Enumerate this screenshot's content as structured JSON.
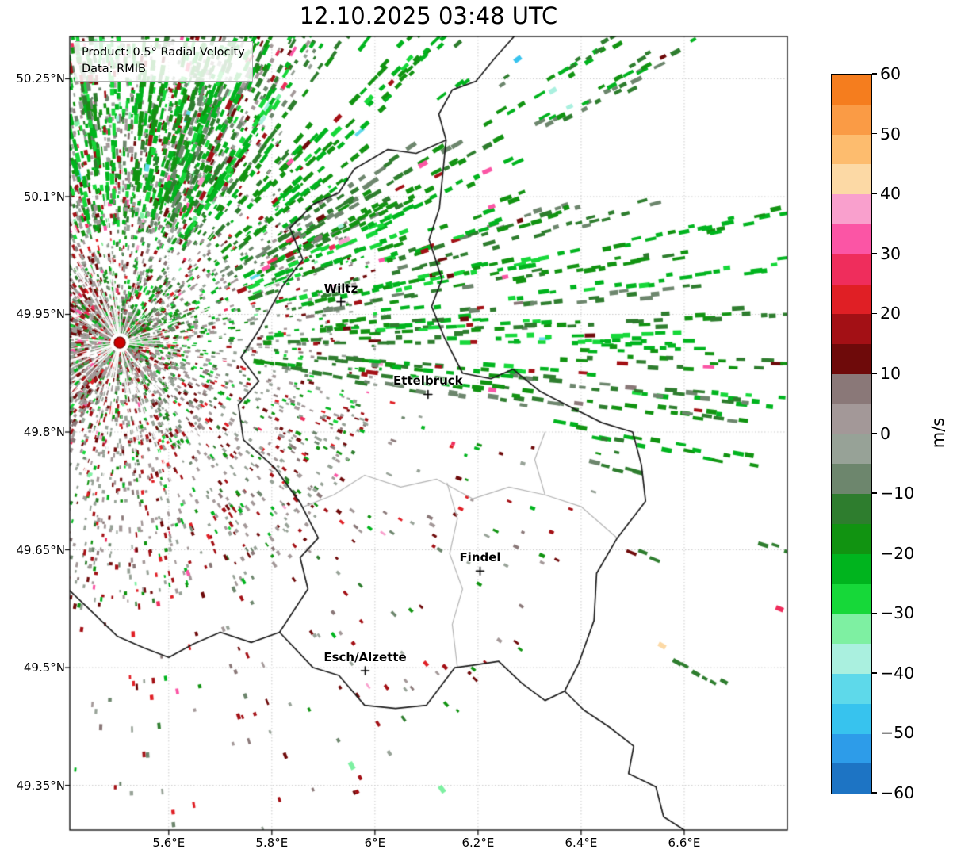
{
  "title": "12.10.2025 03:48 UTC",
  "info_box": {
    "product": "Product: 0.5° Radial Velocity",
    "source": "Data: RMIB"
  },
  "map": {
    "extent": {
      "lon_min": 5.408,
      "lon_max": 6.8,
      "lat_min": 49.293,
      "lat_max": 50.304
    },
    "grid_color": "#c9c9c9",
    "lon_ticks": [
      {
        "value": 5.6,
        "label": "5.6°E"
      },
      {
        "value": 5.8,
        "label": "5.8°E"
      },
      {
        "value": 6.0,
        "label": "6°E"
      },
      {
        "value": 6.2,
        "label": "6.2°E"
      },
      {
        "value": 6.4,
        "label": "6.4°E"
      },
      {
        "value": 6.6,
        "label": "6.6°E"
      }
    ],
    "lat_ticks": [
      {
        "value": 50.25,
        "label": "50.25°N"
      },
      {
        "value": 50.1,
        "label": "50.1°N"
      },
      {
        "value": 49.95,
        "label": "49.95°N"
      },
      {
        "value": 49.8,
        "label": "49.8°N"
      },
      {
        "value": 49.65,
        "label": "49.65°N"
      },
      {
        "value": 49.5,
        "label": "49.5°N"
      },
      {
        "value": 49.35,
        "label": "49.35°N"
      }
    ],
    "cities": [
      {
        "name": "Wiltz",
        "lon": 5.934,
        "lat": 49.966
      },
      {
        "name": "Ettelbruck",
        "lon": 6.103,
        "lat": 49.848
      },
      {
        "name": "Findel",
        "lon": 6.204,
        "lat": 49.623
      },
      {
        "name": "Esch/Alzette",
        "lon": 5.981,
        "lat": 49.496
      }
    ],
    "radar_site": {
      "lon": 5.505,
      "lat": 49.914,
      "color": "#cc0000",
      "edge": "#7a0000"
    },
    "borders": {
      "country_color": "#1a1a1a",
      "region_color": "#b3b3b3",
      "country_paths": [
        [
          [
            6.27,
            50.304
          ],
          [
            6.232,
            50.276
          ],
          [
            6.196,
            50.247
          ],
          [
            6.15,
            50.236
          ],
          [
            6.124,
            50.205
          ],
          [
            6.138,
            50.172
          ],
          [
            6.125,
            50.085
          ],
          [
            6.105,
            50.045
          ],
          [
            6.13,
            49.995
          ],
          [
            6.11,
            49.96
          ],
          [
            6.135,
            49.92
          ],
          [
            6.17,
            49.875
          ],
          [
            6.225,
            49.868
          ],
          [
            6.268,
            49.88
          ],
          [
            6.32,
            49.852
          ],
          [
            6.385,
            49.83
          ],
          [
            6.44,
            49.812
          ],
          [
            6.5,
            49.8
          ],
          [
            6.517,
            49.758
          ],
          [
            6.525,
            49.712
          ],
          [
            6.47,
            49.665
          ],
          [
            6.43,
            49.62
          ],
          [
            6.425,
            49.56
          ],
          [
            6.395,
            49.505
          ],
          [
            6.368,
            49.47
          ],
          [
            6.405,
            49.446
          ],
          [
            6.455,
            49.424
          ],
          [
            6.502,
            49.4
          ],
          [
            6.492,
            49.365
          ],
          [
            6.545,
            49.348
          ],
          [
            6.56,
            49.31
          ],
          [
            6.6,
            49.293
          ]
        ],
        [
          [
            6.138,
            50.172
          ],
          [
            6.08,
            50.155
          ],
          [
            6.025,
            50.16
          ],
          [
            5.96,
            50.135
          ],
          [
            5.93,
            50.105
          ],
          [
            5.88,
            50.09
          ],
          [
            5.835,
            50.06
          ],
          [
            5.86,
            50.02
          ],
          [
            5.82,
            49.985
          ],
          [
            5.775,
            49.93
          ],
          [
            5.74,
            49.895
          ],
          [
            5.775,
            49.865
          ],
          [
            5.735,
            49.835
          ],
          [
            5.745,
            49.79
          ],
          [
            5.805,
            49.755
          ],
          [
            5.855,
            49.71
          ],
          [
            5.89,
            49.665
          ],
          [
            5.855,
            49.64
          ],
          [
            5.87,
            49.6
          ],
          [
            5.845,
            49.575
          ],
          [
            5.815,
            49.545
          ]
        ],
        [
          [
            5.408,
            49.598
          ],
          [
            5.445,
            49.575
          ],
          [
            5.5,
            49.54
          ],
          [
            5.552,
            49.525
          ],
          [
            5.6,
            49.513
          ],
          [
            5.648,
            49.53
          ],
          [
            5.7,
            49.545
          ],
          [
            5.76,
            49.532
          ],
          [
            5.815,
            49.545
          ],
          [
            5.88,
            49.5
          ],
          [
            5.93,
            49.49
          ],
          [
            5.98,
            49.452
          ],
          [
            6.04,
            49.448
          ],
          [
            6.1,
            49.452
          ],
          [
            6.155,
            49.5
          ],
          [
            6.19,
            49.503
          ],
          [
            6.24,
            49.508
          ],
          [
            6.285,
            49.48
          ],
          [
            6.33,
            49.458
          ],
          [
            6.368,
            49.47
          ]
        ]
      ],
      "region_paths": [
        [
          [
            5.862,
            49.705
          ],
          [
            5.92,
            49.72
          ],
          [
            5.98,
            49.745
          ],
          [
            6.05,
            49.73
          ],
          [
            6.12,
            49.74
          ],
          [
            6.19,
            49.715
          ],
          [
            6.26,
            49.73
          ],
          [
            6.33,
            49.72
          ],
          [
            6.4,
            49.705
          ],
          [
            6.47,
            49.665
          ]
        ],
        [
          [
            6.14,
            49.735
          ],
          [
            6.16,
            49.69
          ],
          [
            6.145,
            49.645
          ],
          [
            6.17,
            49.6
          ],
          [
            6.15,
            49.555
          ],
          [
            6.16,
            49.5
          ]
        ],
        [
          [
            6.33,
            49.72
          ],
          [
            6.31,
            49.765
          ],
          [
            6.33,
            49.8
          ]
        ]
      ]
    }
  },
  "colorbar": {
    "label": "m/s",
    "unit_min": -60,
    "unit_max": 60,
    "tick_values": [
      60,
      50,
      40,
      30,
      20,
      10,
      0,
      -10,
      -20,
      -30,
      -40,
      -50,
      -60
    ],
    "tick_labels": [
      "60",
      "50",
      "40",
      "30",
      "20",
      "10",
      "0",
      "−10",
      "−20",
      "−30",
      "−40",
      "−50",
      "−60"
    ],
    "segments_top_to_bottom": [
      {
        "hi": 60,
        "lo": 55,
        "color": "#f57d1e"
      },
      {
        "hi": 55,
        "lo": 50,
        "color": "#fa9b45"
      },
      {
        "hi": 50,
        "lo": 45,
        "color": "#fdbc6e"
      },
      {
        "hi": 45,
        "lo": 40,
        "color": "#fcd9a5"
      },
      {
        "hi": 40,
        "lo": 35,
        "color": "#f9a0cd"
      },
      {
        "hi": 35,
        "lo": 30,
        "color": "#fb55a5"
      },
      {
        "hi": 30,
        "lo": 25,
        "color": "#ef2d5c"
      },
      {
        "hi": 25,
        "lo": 20,
        "color": "#e01f25"
      },
      {
        "hi": 20,
        "lo": 15,
        "color": "#a31015"
      },
      {
        "hi": 15,
        "lo": 10,
        "color": "#6e0a0a"
      },
      {
        "hi": 10,
        "lo": 5,
        "color": "#8a7878"
      },
      {
        "hi": 5,
        "lo": 0,
        "color": "#a39898"
      },
      {
        "hi": 0,
        "lo": -5,
        "color": "#97a297"
      },
      {
        "hi": -5,
        "lo": -10,
        "color": "#6d866d"
      },
      {
        "hi": -10,
        "lo": -15,
        "color": "#2e7d2e"
      },
      {
        "hi": -15,
        "lo": -20,
        "color": "#119311"
      },
      {
        "hi": -20,
        "lo": -25,
        "color": "#00b41e"
      },
      {
        "hi": -25,
        "lo": -30,
        "color": "#16d839"
      },
      {
        "hi": -30,
        "lo": -35,
        "color": "#7ef0a2"
      },
      {
        "hi": -35,
        "lo": -40,
        "color": "#aaf0df"
      },
      {
        "hi": -40,
        "lo": -45,
        "color": "#5ed9ea"
      },
      {
        "hi": -45,
        "lo": -50,
        "color": "#37c3ee"
      },
      {
        "hi": -50,
        "lo": -55,
        "color": "#2d9ce9"
      },
      {
        "hi": -55,
        "lo": -60,
        "color": "#1d74c4"
      }
    ]
  },
  "radar_field": {
    "seed": 348,
    "near_clutter": {
      "count": 5200,
      "r_min": 8,
      "r_max": 330,
      "r_pow": 1.6,
      "len": [
        3,
        6.5
      ],
      "wid": [
        2,
        4
      ]
    },
    "west_mix": {
      "count": 1400,
      "az": [
        115,
        255
      ],
      "r_min": 40,
      "r_max": 430,
      "len": [
        4,
        8
      ],
      "wid": [
        2.5,
        4.5
      ]
    },
    "north_blob": {
      "count": 2000,
      "az": [
        -145,
        -55
      ],
      "r_min": 140,
      "r_max": 480,
      "len": [
        4,
        9
      ],
      "wid": [
        2.5,
        5
      ]
    },
    "ne_beams": {
      "beams": 175,
      "az": [
        -108,
        12
      ],
      "r_min": 150,
      "r_max": 880,
      "cells": [
        4,
        30
      ],
      "len": [
        7,
        16
      ],
      "wid": [
        3.5,
        6
      ]
    },
    "south_sparse": {
      "count": 640,
      "az": [
        12,
        200
      ],
      "r_min": 230,
      "r_max": 640,
      "len": [
        4,
        8
      ],
      "wid": [
        2.5,
        4.5
      ]
    },
    "far_east": {
      "beams": 12,
      "az": [
        -35,
        30
      ],
      "r_min": 560,
      "r_max": 880,
      "cells": [
        2,
        7
      ],
      "len": [
        7,
        14
      ],
      "wid": [
        3.5,
        5.5
      ]
    },
    "white_rays": {
      "count": 46,
      "len": [
        60,
        300
      ]
    }
  },
  "highlights": [
    {
      "lon": 6.557,
      "lat": 49.528,
      "v": 45
    },
    {
      "lon": 6.785,
      "lat": 49.575,
      "v": 28
    },
    {
      "lon": 6.345,
      "lat": 50.235,
      "v": -38
    },
    {
      "lon": 6.277,
      "lat": 50.275,
      "v": -45
    },
    {
      "lon": 6.13,
      "lat": 49.345,
      "v": -32
    },
    {
      "lon": 5.955,
      "lat": 49.375,
      "v": -33
    }
  ],
  "chart_data": {
    "type": "heatmap",
    "title": "12.10.2025 03:48 UTC",
    "xlabel": "",
    "ylabel": "",
    "x_tick_labels": [
      "5.6°E",
      "5.8°E",
      "6°E",
      "6.2°E",
      "6.4°E",
      "6.6°E"
    ],
    "y_tick_labels": [
      "50.25°N",
      "50.1°N",
      "49.95°N",
      "49.8°N",
      "49.65°N",
      "49.5°N",
      "49.35°N"
    ],
    "xlim": [
      5.408,
      6.8
    ],
    "ylim": [
      49.293,
      50.304
    ],
    "colorbar": {
      "label": "m/s",
      "min": -60,
      "max": 60,
      "ticks": [
        60,
        50,
        40,
        30,
        20,
        10,
        0,
        -10,
        -20,
        -30,
        -40,
        -50,
        -60
      ]
    },
    "field_summary": "0.5° radial velocity PPI from radar at 5.505°E / 49.914°N: widespread negative velocities (−10 to −30 m/s, greens) north and northeast of the radar in radial streaks; near-zero (grey) and positive (10–20 m/s, dark red) speckle west and south near the radar; sparse isolated echoes southeast of the Luxembourg border; grid on, legend (colorbar) right."
  }
}
